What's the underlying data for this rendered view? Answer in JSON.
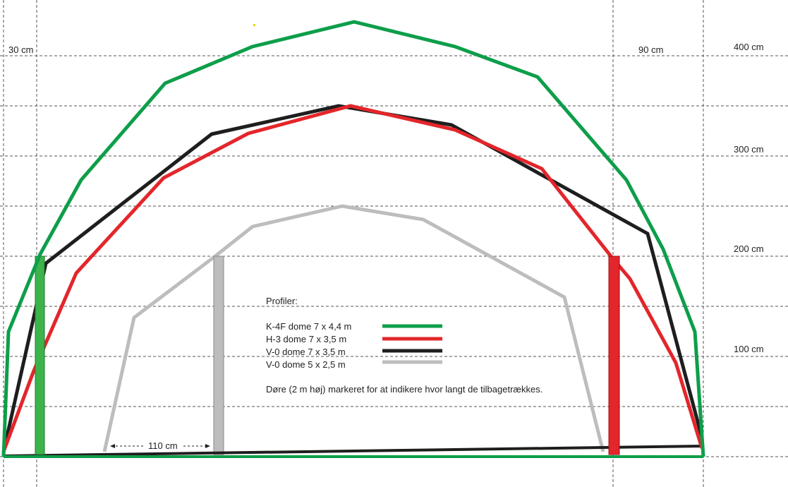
{
  "dimensions": {
    "left_margin": "30 cm",
    "right_margin": "90 cm",
    "door_gap": "110 cm",
    "heights": [
      "400 cm",
      "300 cm",
      "200 cm",
      "100 cm"
    ]
  },
  "legend": {
    "title": "Profiler:",
    "items": [
      "K-4F dome 7 x 4,4 m",
      "H-3 dome 7 x 3,5 m",
      "V-0 dome 7 x 3,5 m",
      "V-0 dome 5 x 2,5 m"
    ]
  },
  "note": "Døre (2 m høj) markeret for at indikere hvor langt de tilbagetrækkes."
}
